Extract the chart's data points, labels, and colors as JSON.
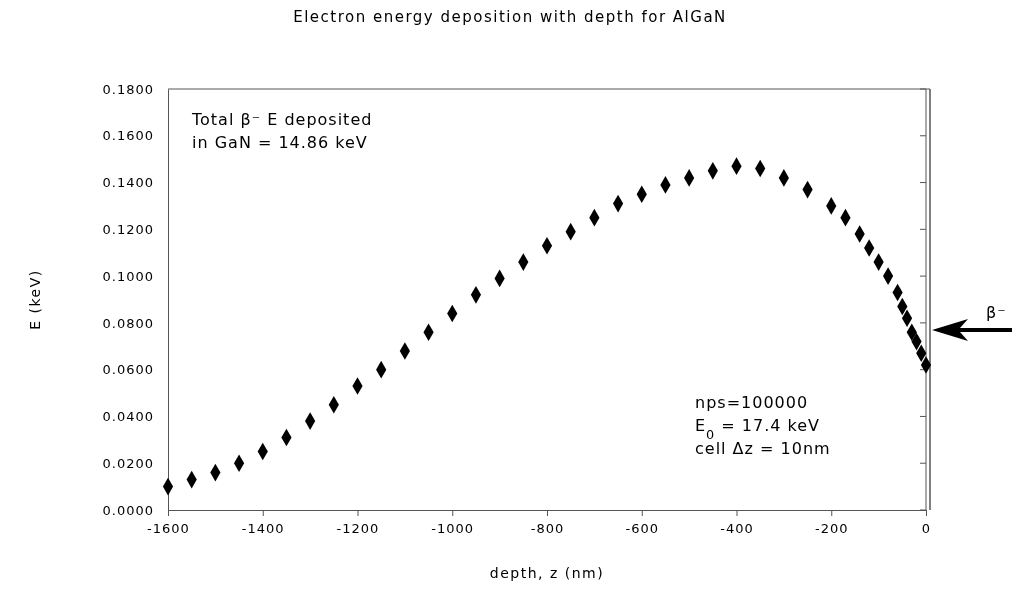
{
  "chart_data": {
    "type": "scatter",
    "title": "Electron energy deposition with depth for AlGaN",
    "xlabel": "depth, z (nm)",
    "ylabel": "E (keV)",
    "marker": "diamond",
    "grid": false,
    "xlim": [
      -1600,
      0
    ],
    "xticks": [
      -1600,
      -1400,
      -1200,
      -1000,
      -800,
      -600,
      -400,
      -200,
      0
    ],
    "ylim": [
      0,
      0.18
    ],
    "yticks": [
      {
        "value": 0,
        "label": "0.0000"
      },
      {
        "value": 0.02,
        "label": "0.0200"
      },
      {
        "value": 0.04,
        "label": "0.0400"
      },
      {
        "value": 0.06,
        "label": "0.0600"
      },
      {
        "value": 0.08,
        "label": "0.0800"
      },
      {
        "value": 0.1,
        "label": "0.1000"
      },
      {
        "value": 0.12,
        "label": "0.1200"
      },
      {
        "value": 0.14,
        "label": "0.1400"
      },
      {
        "value": 0.16,
        "label": "0.1600"
      },
      {
        "value": 0.18,
        "label": "0.1800"
      }
    ],
    "x": [
      -1600,
      -1550,
      -1500,
      -1450,
      -1400,
      -1350,
      -1300,
      -1250,
      -1200,
      -1150,
      -1100,
      -1050,
      -1000,
      -950,
      -900,
      -850,
      -800,
      -750,
      -700,
      -650,
      -600,
      -550,
      -500,
      -450,
      -400,
      -350,
      -300,
      -250,
      -200,
      -170,
      -140,
      -120,
      -100,
      -80,
      -60,
      -50,
      -40,
      -30,
      -20,
      -10,
      0
    ],
    "series": [
      {
        "color": "#000000",
        "values": [
          0.01,
          0.013,
          0.016,
          0.02,
          0.025,
          0.031,
          0.038,
          0.045,
          0.053,
          0.06,
          0.068,
          0.076,
          0.084,
          0.092,
          0.099,
          0.106,
          0.113,
          0.119,
          0.125,
          0.131,
          0.135,
          0.139,
          0.142,
          0.145,
          0.147,
          0.146,
          0.142,
          0.137,
          0.13,
          0.125,
          0.118,
          0.112,
          0.106,
          0.1,
          0.093,
          0.087,
          0.082,
          0.076,
          0.072,
          0.067,
          0.062
        ]
      }
    ],
    "annotations": [
      "Total β⁻ E deposited\nin GaN = 14.86 keV",
      "nps=100000\nE$_{0}$ = 17.4 keV\ncell Δz = 10nm",
      "β⁻"
    ]
  }
}
